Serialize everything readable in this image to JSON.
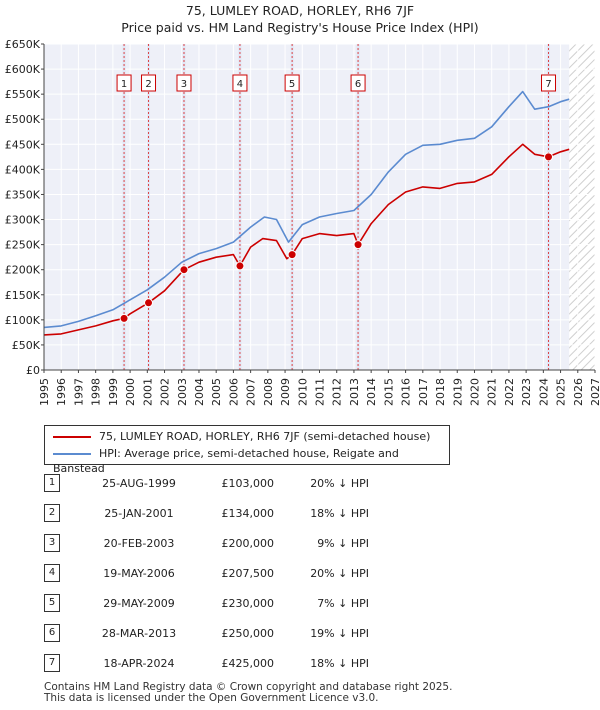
{
  "chart_data": {
    "type": "line",
    "title": "75, LUMLEY ROAD, HORLEY, RH6 7JF",
    "subtitle": "Price paid vs. HM Land Registry's House Price Index (HPI)",
    "xlim": [
      1995,
      2027
    ],
    "ylim": [
      0,
      650000
    ],
    "y_ticks": [
      0,
      50000,
      100000,
      150000,
      200000,
      250000,
      300000,
      350000,
      400000,
      450000,
      500000,
      550000,
      600000,
      650000
    ],
    "y_tick_labels": [
      "£0",
      "£50K",
      "£100K",
      "£150K",
      "£200K",
      "£250K",
      "£300K",
      "£350K",
      "£400K",
      "£450K",
      "£500K",
      "£550K",
      "£600K",
      "£650K"
    ],
    "x_ticks": [
      1995,
      1996,
      1997,
      1998,
      1999,
      2000,
      2001,
      2002,
      2003,
      2004,
      2005,
      2006,
      2007,
      2008,
      2009,
      2010,
      2011,
      2012,
      2013,
      2014,
      2015,
      2016,
      2017,
      2018,
      2019,
      2020,
      2021,
      2022,
      2023,
      2024,
      2025,
      2026,
      2027
    ],
    "x_tick_labels": [
      "1995",
      "1996",
      "1997",
      "1998",
      "1999",
      "2000",
      "2001",
      "2002",
      "2003",
      "2004",
      "2005",
      "2006",
      "2007",
      "2008",
      "2009",
      "2010",
      "2011",
      "2012",
      "2013",
      "2014",
      "2015",
      "2016",
      "2017",
      "2018",
      "2019",
      "2020",
      "2021",
      "2022",
      "2023",
      "2024",
      "2025",
      "2026",
      "2027"
    ],
    "grid": true,
    "forecast_from": 2025.5,
    "series": [
      {
        "name": "75, LUMLEY ROAD, HORLEY, RH6 7JF (semi-detached house)",
        "color": "#cc0000",
        "x": [
          1995.0,
          1996.0,
          1997.0,
          1998.0,
          1999.0,
          1999.65,
          2000.0,
          2001.07,
          2002.0,
          2003.13,
          2004.0,
          2005.0,
          2006.0,
          2006.38,
          2007.0,
          2007.7,
          2008.5,
          2009.1,
          2009.41,
          2010.0,
          2011.0,
          2012.0,
          2013.0,
          2013.24,
          2014.0,
          2015.0,
          2016.0,
          2017.0,
          2018.0,
          2019.0,
          2020.0,
          2021.0,
          2022.0,
          2022.8,
          2023.5,
          2024.3,
          2025.0,
          2025.5
        ],
        "y": [
          70000,
          72000,
          80000,
          88000,
          98000,
          103000,
          112000,
          134000,
          158000,
          200000,
          215000,
          225000,
          230000,
          207500,
          245000,
          262000,
          258000,
          222000,
          230000,
          262000,
          272000,
          268000,
          272000,
          250000,
          292000,
          330000,
          355000,
          365000,
          362000,
          372000,
          375000,
          390000,
          425000,
          450000,
          430000,
          425000,
          435000,
          440000
        ]
      },
      {
        "name": "HPI: Average price, semi-detached house, Reigate and Banstead",
        "color": "#5b8bd0",
        "x": [
          1995.0,
          1996.0,
          1997.0,
          1998.0,
          1999.0,
          2000.0,
          2001.0,
          2002.0,
          2003.0,
          2004.0,
          2005.0,
          2006.0,
          2007.0,
          2007.8,
          2008.5,
          2009.2,
          2010.0,
          2011.0,
          2012.0,
          2013.0,
          2014.0,
          2015.0,
          2016.0,
          2017.0,
          2018.0,
          2019.0,
          2020.0,
          2021.0,
          2022.0,
          2022.8,
          2023.5,
          2024.3,
          2025.0,
          2025.5
        ],
        "y": [
          85000,
          88000,
          97000,
          108000,
          120000,
          140000,
          160000,
          185000,
          215000,
          232000,
          242000,
          255000,
          285000,
          305000,
          300000,
          255000,
          290000,
          305000,
          312000,
          318000,
          350000,
          395000,
          430000,
          448000,
          450000,
          458000,
          462000,
          485000,
          525000,
          555000,
          520000,
          525000,
          535000,
          540000
        ]
      }
    ],
    "markers": [
      {
        "label": "1",
        "x": 1999.65,
        "y": 103000
      },
      {
        "label": "2",
        "x": 2001.07,
        "y": 134000
      },
      {
        "label": "3",
        "x": 2003.13,
        "y": 200000
      },
      {
        "label": "4",
        "x": 2006.38,
        "y": 207500
      },
      {
        "label": "5",
        "x": 2009.41,
        "y": 230000
      },
      {
        "label": "6",
        "x": 2013.24,
        "y": 250000
      },
      {
        "label": "7",
        "x": 2024.3,
        "y": 425000
      }
    ]
  },
  "legend": {
    "property": "75, LUMLEY ROAD, HORLEY, RH6 7JF (semi-detached house)",
    "hpi": "HPI: Average price, semi-detached house, Reigate and Banstead"
  },
  "sales": [
    {
      "num": "1",
      "date": "25-AUG-1999",
      "price": "£103,000",
      "hpi": "20% ↓ HPI"
    },
    {
      "num": "2",
      "date": "25-JAN-2001",
      "price": "£134,000",
      "hpi": "18% ↓ HPI"
    },
    {
      "num": "3",
      "date": "20-FEB-2003",
      "price": "£200,000",
      "hpi": "9% ↓ HPI"
    },
    {
      "num": "4",
      "date": "19-MAY-2006",
      "price": "£207,500",
      "hpi": "20% ↓ HPI"
    },
    {
      "num": "5",
      "date": "29-MAY-2009",
      "price": "£230,000",
      "hpi": "7% ↓ HPI"
    },
    {
      "num": "6",
      "date": "28-MAR-2013",
      "price": "£250,000",
      "hpi": "19% ↓ HPI"
    },
    {
      "num": "7",
      "date": "18-APR-2024",
      "price": "£425,000",
      "hpi": "18% ↓ HPI"
    }
  ],
  "footer": {
    "line1": "Contains HM Land Registry data © Crown copyright and database right 2025.",
    "line2": "This data is licensed under the Open Government Licence v3.0."
  }
}
